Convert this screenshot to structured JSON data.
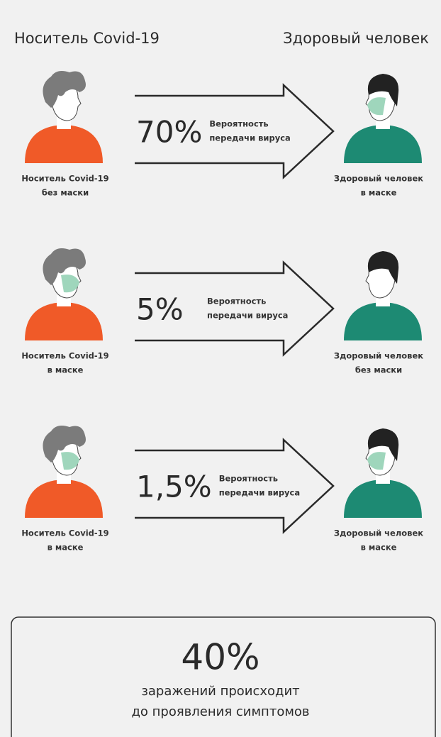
{
  "header": {
    "left": "Носитель Covid-19",
    "right": "Здоровый человек"
  },
  "rows": [
    {
      "carrier": [
        "Носитель Covid-19",
        "без маски"
      ],
      "percent": "70%",
      "description": [
        "Вероятность",
        "передачи вируса"
      ],
      "healthy": [
        "Здоровый человек",
        "в маске"
      ]
    },
    {
      "carrier": [
        "Носитель Covid-19",
        "в маске"
      ],
      "percent": "5%",
      "description": [
        "Вероятность",
        "передачи вируса"
      ],
      "healthy": [
        "Здоровый человек",
        "без маски"
      ]
    },
    {
      "carrier": [
        "Носитель Covid-19",
        "в маске"
      ],
      "percent": "1,5%",
      "description": [
        "Вероятность",
        "передачи вируса"
      ],
      "healthy": [
        "Здоровый человек",
        "в маске"
      ]
    }
  ],
  "summary": {
    "percent": "40%",
    "text": [
      "заражений происходит",
      "до проявления симптомов"
    ]
  }
}
